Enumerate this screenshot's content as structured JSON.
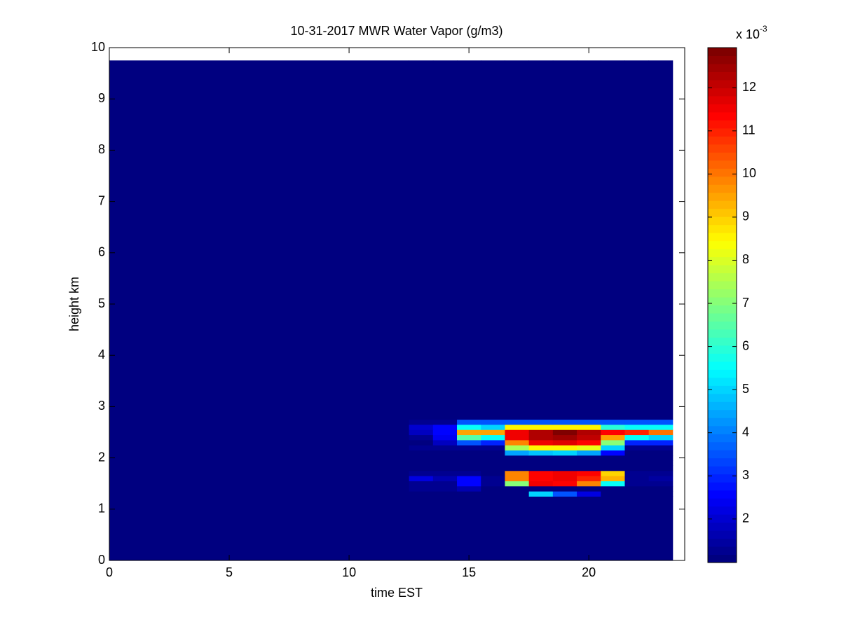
{
  "chart_data": {
    "type": "heatmap",
    "title": "10-31-2017 MWR Water Vapor (g/m3)",
    "x_label": "time EST",
    "y_label": "height km",
    "xlim": [
      0,
      24
    ],
    "xticks": [
      0,
      5,
      10,
      15,
      20
    ],
    "ylim": [
      0,
      10
    ],
    "yticks": [
      0,
      1,
      2,
      3,
      4,
      5,
      6,
      7,
      8,
      9,
      10
    ],
    "x_edges": [
      0,
      12.5,
      13.5,
      14.5,
      15.5,
      16.5,
      17.5,
      18.5,
      19.5,
      20.5,
      21.5,
      22.5,
      23.5
    ],
    "y_edges": [
      0,
      1.25,
      1.35,
      1.45,
      1.55,
      1.65,
      1.75,
      1.85,
      1.95,
      2.05,
      2.15,
      2.25,
      2.35,
      2.45,
      2.55,
      2.65,
      2.75,
      9.75
    ],
    "z": [
      [
        1.05,
        1.05,
        1.05,
        1.05,
        1.05,
        1.05,
        1.05,
        1.05,
        1.05,
        1.05,
        1.05,
        1.05
      ],
      [
        1.05,
        1.1,
        1.1,
        1.1,
        1.1,
        1.1,
        5,
        3.5,
        2.2,
        1.1,
        1.1,
        1.1
      ],
      [
        1.05,
        1.2,
        1.2,
        1.6,
        1.1,
        1.1,
        1.1,
        1.1,
        1.1,
        1.1,
        1.1,
        1.1
      ],
      [
        1.05,
        1.3,
        1.3,
        2.6,
        1.2,
        7,
        11.5,
        11.3,
        9.8,
        5.5,
        1.2,
        1.2
      ],
      [
        1.05,
        2.2,
        1.6,
        2.5,
        1.3,
        9.8,
        11.3,
        11.5,
        11,
        9.2,
        1.3,
        1.5
      ],
      [
        1.05,
        1.3,
        1.2,
        1.3,
        1.1,
        9.8,
        11.3,
        11.5,
        11.3,
        9,
        1.2,
        1.3
      ],
      [
        1.05,
        1.1,
        1.1,
        1.1,
        1.1,
        1.1,
        1.1,
        1.1,
        1.1,
        1.1,
        1.1,
        1.1
      ],
      [
        1.05,
        1.1,
        1.1,
        1.1,
        1.1,
        1.1,
        1.1,
        1.1,
        1.1,
        1.1,
        1.1,
        1.1
      ],
      [
        1.05,
        1.1,
        1.1,
        1.1,
        1.1,
        1.1,
        1.1,
        1.1,
        1.1,
        1.1,
        1.1,
        1.1
      ],
      [
        1.05,
        1.1,
        1.1,
        1.1,
        1.1,
        4.5,
        4.8,
        5,
        4.5,
        2.5,
        1.1,
        1.1
      ],
      [
        1.05,
        1.2,
        1.2,
        1.2,
        1.2,
        7.5,
        8.5,
        8.5,
        8.2,
        5,
        1.2,
        1.2
      ],
      [
        1.05,
        1.05,
        1.8,
        3.5,
        3,
        9.8,
        11.5,
        11.8,
        11.3,
        7,
        3,
        3
      ],
      [
        1.05,
        1.3,
        2.3,
        6.5,
        5.5,
        11.5,
        12.3,
        12.5,
        12,
        9.5,
        5.5,
        5
      ],
      [
        1.05,
        1.8,
        2.5,
        9.5,
        9.5,
        11.5,
        12.3,
        12.9,
        12.3,
        11.3,
        11,
        10
      ],
      [
        1.05,
        2,
        2.5,
        5.5,
        5,
        8.5,
        8.5,
        8.5,
        8.5,
        6,
        5.5,
        5.5
      ],
      [
        1.05,
        1.3,
        1.3,
        3.5,
        3.5,
        3.5,
        3.5,
        3.5,
        3.5,
        3.5,
        3.5,
        3.5
      ],
      [
        1.05,
        1.05,
        1.05,
        1.05,
        1.05,
        1.05,
        1.05,
        1.05,
        1.05,
        1.05,
        1.05,
        1.05
      ]
    ],
    "colormap": "jet",
    "clim": [
      0.99,
      12.93
    ],
    "cticks": [
      2,
      3,
      4,
      5,
      6,
      7,
      8,
      9,
      10,
      11,
      12
    ],
    "colorbar_scale": "x 10",
    "colorbar_exponent": "-3"
  }
}
